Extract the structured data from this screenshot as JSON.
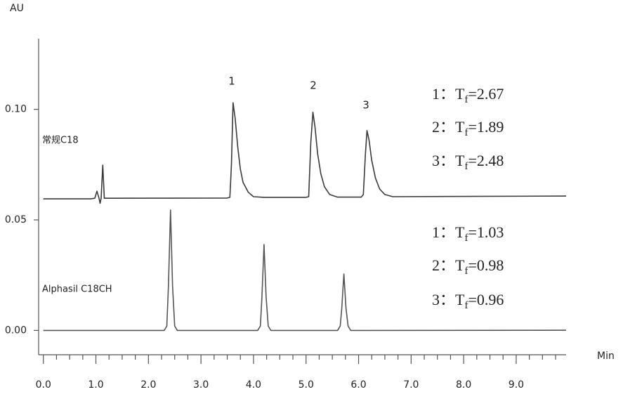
{
  "chart_data": {
    "type": "line",
    "ylabel": "AU",
    "xlabel": "Min",
    "xlim": [
      -0.09,
      9.95
    ],
    "ylim": [
      -0.011,
      0.132
    ],
    "xticks": [
      {
        "value": 0,
        "label": "0.0"
      },
      {
        "value": 1,
        "label": "1.0"
      },
      {
        "value": 2,
        "label": "2.0"
      },
      {
        "value": 3,
        "label": "3.0"
      },
      {
        "value": 4,
        "label": "4.0"
      },
      {
        "value": 5,
        "label": "5.0"
      },
      {
        "value": 6,
        "label": "6.0"
      },
      {
        "value": 7,
        "label": "7.0"
      },
      {
        "value": 8,
        "label": "8.0"
      },
      {
        "value": 9,
        "label": "9.0"
      }
    ],
    "xminorticks": [
      0.25,
      0.5,
      0.75,
      1.25,
      1.5,
      1.75,
      2.25,
      2.5,
      2.75,
      3.25,
      3.5,
      3.75,
      4.25,
      4.5,
      4.75,
      5.25,
      5.5,
      5.75,
      6.25,
      6.5,
      6.75,
      7.25,
      7.5,
      7.75,
      8.25,
      8.5,
      8.75,
      9.25,
      9.5,
      9.75
    ],
    "yticks": [
      {
        "value": 0,
        "label": "0.00"
      },
      {
        "value": 0.05,
        "label": "0.05"
      },
      {
        "value": 0.1,
        "label": "0.10"
      }
    ],
    "series": [
      {
        "name": "常规C18",
        "color": "#3a3a3a",
        "x": [
          0,
          0.9,
          0.98,
          1.02,
          1.06,
          1.08,
          1.1,
          1.13,
          1.16,
          1.3,
          3.5,
          3.55,
          3.58,
          3.61,
          3.65,
          3.7,
          3.75,
          3.8,
          3.9,
          4.0,
          4.2,
          5.0,
          5.05,
          5.09,
          5.13,
          5.17,
          5.22,
          5.28,
          5.35,
          5.45,
          5.6,
          6.05,
          6.09,
          6.13,
          6.16,
          6.2,
          6.25,
          6.32,
          6.4,
          6.5,
          6.65,
          9.95
        ],
        "values": [
          0.0595,
          0.0595,
          0.0598,
          0.063,
          0.0598,
          0.0575,
          0.0598,
          0.0748,
          0.0598,
          0.0598,
          0.0599,
          0.0602,
          0.075,
          0.103,
          0.096,
          0.083,
          0.073,
          0.067,
          0.0625,
          0.0605,
          0.0602,
          0.0602,
          0.0605,
          0.085,
          0.0987,
          0.092,
          0.08,
          0.071,
          0.065,
          0.0615,
          0.0603,
          0.0603,
          0.0615,
          0.08,
          0.0904,
          0.086,
          0.077,
          0.069,
          0.064,
          0.0615,
          0.0605,
          0.0608
        ]
      },
      {
        "name": "Alphasil C18CH",
        "color": "#555555",
        "x": [
          0,
          2.3,
          2.35,
          2.38,
          2.42,
          2.46,
          2.5,
          2.55,
          4.08,
          4.13,
          4.16,
          4.2,
          4.24,
          4.28,
          4.33,
          5.6,
          5.65,
          5.68,
          5.72,
          5.76,
          5.8,
          5.85,
          9.95
        ],
        "values": [
          0,
          0,
          0.002,
          0.02,
          0.0545,
          0.02,
          0.002,
          0,
          0,
          0.002,
          0.015,
          0.0389,
          0.015,
          0.002,
          0,
          0,
          0.002,
          0.01,
          0.0255,
          0.01,
          0.002,
          0,
          0.0001
        ]
      }
    ],
    "peak_labels": [
      "1",
      "2",
      "3"
    ],
    "annotations": [
      {
        "label": "1：",
        "symbol": "T",
        "subscript": "f",
        "value": "=2.67"
      },
      {
        "label": "2：",
        "symbol": "T",
        "subscript": "f",
        "value": "=1.89"
      },
      {
        "label": "3：",
        "symbol": "T",
        "subscript": "f",
        "value": "=2.48"
      },
      {
        "label": "1：",
        "symbol": "T",
        "subscript": "f",
        "value": "=1.03"
      },
      {
        "label": "2：",
        "symbol": "T",
        "subscript": "f",
        "value": "=0.98"
      },
      {
        "label": "3：",
        "symbol": "T",
        "subscript": "f",
        "value": "=0.96"
      }
    ]
  }
}
